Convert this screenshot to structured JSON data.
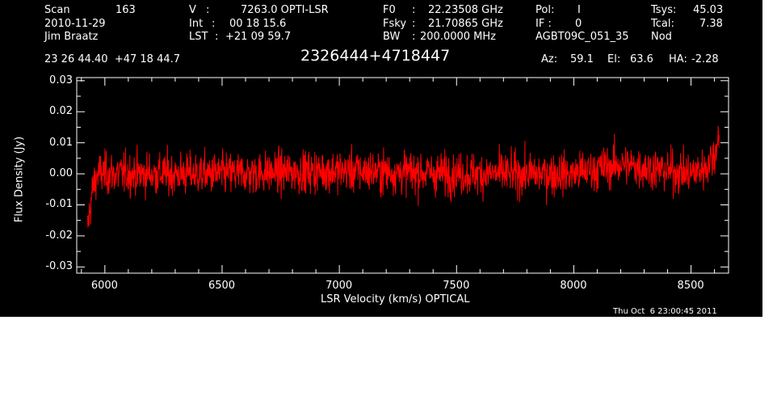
{
  "header": {
    "scan_label": "Scan",
    "scan_value": "163",
    "date": "2010-11-29",
    "observer": "Jim Braatz",
    "v_label": "V",
    "v_value": "7263.0 OPTI-LSR",
    "int_label": "Int",
    "int_value": "00 18 15.6",
    "lst_label": "LST",
    "lst_value": "+21 09 59.7",
    "f0_label": "F0",
    "f0_value": "22.23508 GHz",
    "fsky_label": "Fsky",
    "fsky_value": "21.70865 GHz",
    "bw_label": "BW",
    "bw_value": "200.0000 MHz",
    "pol_label": "Pol:",
    "pol_value": "I",
    "if_label": "IF :",
    "if_value": "0",
    "project": "AGBT09C_051_35",
    "tsys_label": "Tsys:",
    "tsys_value": "45.03",
    "tcal_label": "Tcal:",
    "tcal_value": "7.38",
    "mode": "Nod",
    "coords": "23 26 44.40  +47 18 44.7",
    "source": "2326444+4718447",
    "az_label": "Az:",
    "az_value": "59.1",
    "el_label": "El:",
    "el_value": "63.6",
    "ha_label": "HA:",
    "ha_value": "-2.28"
  },
  "timestamp": "Thu Oct  6 23:00:45 2011",
  "colors": {
    "background": "#000000",
    "axes": "#ffffff",
    "trace": "#ff0000"
  },
  "chart_data": {
    "type": "line",
    "title": "",
    "xlabel": "LSR Velocity (km/s) OPTICAL",
    "ylabel": "Flux Density (Jy)",
    "xlim": [
      5880,
      8660
    ],
    "ylim": [
      -0.032,
      0.031
    ],
    "xticks": [
      6000,
      6500,
      7000,
      7500,
      8000,
      8500
    ],
    "xtick_labels": [
      "6000",
      "6500",
      "7000",
      "7500",
      "8000",
      "8500"
    ],
    "yticks": [
      -0.03,
      -0.02,
      -0.01,
      0.0,
      0.01,
      0.02,
      0.03
    ],
    "ytick_labels": [
      "-0.03",
      "-0.02",
      "-0.01",
      "0.00",
      "0.01",
      "0.02",
      "0.03"
    ],
    "series": [
      {
        "name": "",
        "color": "#ff0000",
        "x_range": [
          5925,
          8620
        ],
        "baseline": 0.0,
        "noise_rms": 0.0045,
        "profile": {
          "x": [
            5925,
            5935,
            5950,
            5970,
            6000,
            6500,
            7000,
            7500,
            8000,
            8200,
            8500,
            8560,
            8600,
            8620
          ],
          "y": [
            -0.018,
            -0.012,
            -0.004,
            0.0,
            0.0,
            0.0,
            0.001,
            0.0,
            0.0,
            0.003,
            0.0,
            0.002,
            0.006,
            0.014
          ]
        }
      }
    ]
  }
}
